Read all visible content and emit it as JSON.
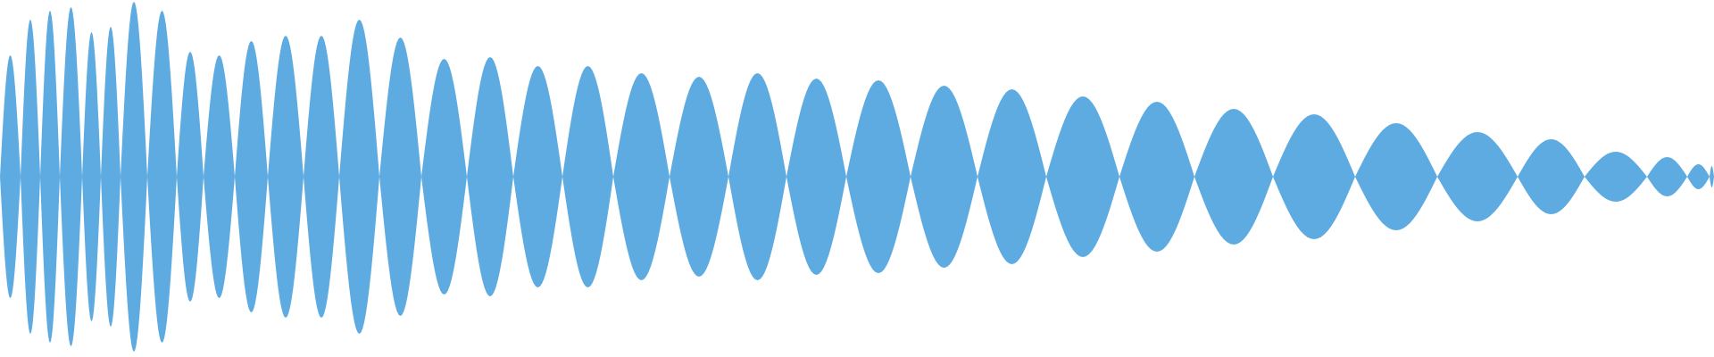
{
  "waveform": {
    "fill_color": "#5DABE1",
    "background_color": "#FFFFFF",
    "lobe_count": 37,
    "amplitudes_relative": [
      0.68,
      0.88,
      0.93,
      0.95,
      0.81,
      0.84,
      0.98,
      0.93,
      0.7,
      0.68,
      0.76,
      0.79,
      0.79,
      0.88,
      0.78,
      0.66,
      0.67,
      0.62,
      0.62,
      0.58,
      0.56,
      0.58,
      0.55,
      0.54,
      0.51,
      0.49,
      0.45,
      0.42,
      0.38,
      0.35,
      0.3,
      0.25,
      0.21,
      0.14,
      0.11,
      0.07,
      0.06
    ]
  }
}
